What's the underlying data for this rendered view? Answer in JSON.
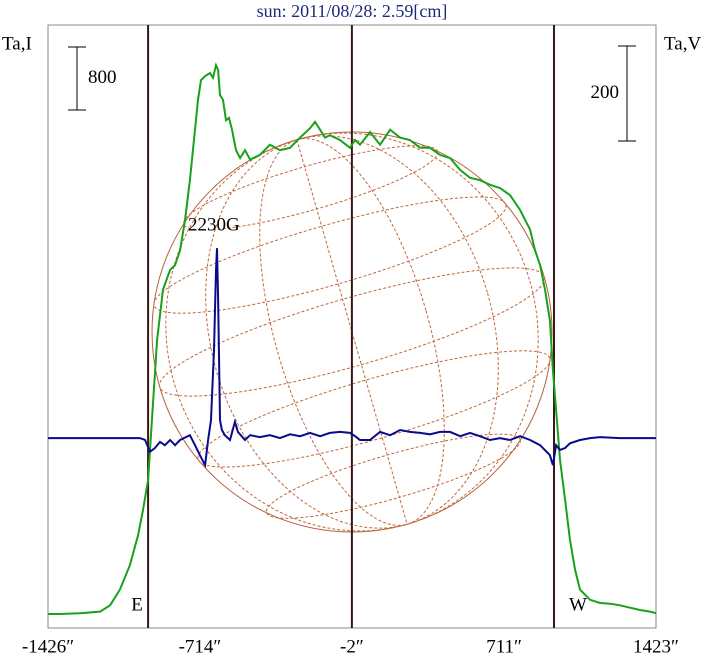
{
  "chart_data": {
    "type": "line",
    "title": "sun: 2011/08/28: 2.59[cm]",
    "ylabel": "Ta,I",
    "y2label": "Ta,V",
    "xlim": [
      -1426,
      1423
    ],
    "xticks": [
      {
        "value": -1426,
        "label": "-1426″"
      },
      {
        "value": -714,
        "label": "-714″"
      },
      {
        "value": -2,
        "label": "-2″"
      },
      {
        "value": 711,
        "label": "711″"
      },
      {
        "value": 1423,
        "label": "1423″"
      }
    ],
    "ylim": [
      -178,
      7480
    ],
    "y2lim": [
      -400,
      870
    ],
    "scale_bars": [
      {
        "value": 800
      },
      {
        "value": 200,
        "axis": "y2"
      }
    ],
    "markers": [
      {
        "x": -957,
        "label": "E"
      },
      {
        "x": -2
      },
      {
        "x": 945,
        "label": "W"
      }
    ],
    "annotations": [
      {
        "text": "2230G"
      }
    ],
    "series": [
      {
        "color": "#1aa01a",
        "x": [
          -1426,
          -1370,
          -1276,
          -1182,
          -1135,
          -1089,
          -1042,
          -1004,
          -981,
          -957,
          -939,
          -915,
          -887,
          -854,
          -831,
          -807,
          -784,
          -761,
          -737,
          -723,
          -709,
          -690,
          -667,
          -653,
          -639,
          -629,
          -620,
          -606,
          -592,
          -578,
          -564,
          -545,
          -526,
          -503,
          -479,
          -433,
          -386,
          -339,
          -292,
          -245,
          -198,
          -175,
          -151,
          -128,
          -105,
          -58,
          -11,
          13,
          36,
          83,
          130,
          177,
          224,
          270,
          317,
          364,
          411,
          458,
          505,
          552,
          598,
          645,
          692,
          739,
          786,
          833,
          856,
          880,
          903,
          926,
          940,
          955,
          973,
          997,
          1020,
          1044,
          1067,
          1114,
          1161,
          1208,
          1254,
          1301,
          1348,
          1395,
          1423
        ],
        "values": [
          0,
          0,
          10,
          30,
          110,
          310,
          620,
          1000,
          1320,
          1700,
          2460,
          3480,
          4120,
          4370,
          4430,
          4620,
          5000,
          5510,
          6150,
          6530,
          6780,
          6830,
          6870,
          6810,
          6970,
          6910,
          6590,
          6530,
          6270,
          6300,
          6150,
          5890,
          5790,
          5890,
          5770,
          5830,
          5960,
          5890,
          5920,
          6050,
          6170,
          6250,
          6150,
          6050,
          6080,
          6020,
          5920,
          6020,
          5960,
          6120,
          5960,
          6150,
          6050,
          6020,
          5920,
          5920,
          5830,
          5790,
          5640,
          5540,
          5510,
          5450,
          5410,
          5320,
          5130,
          4880,
          4620,
          4430,
          4120,
          3730,
          3100,
          2590,
          1960,
          1450,
          940,
          560,
          310,
          180,
          140,
          130,
          110,
          80,
          50,
          30,
          10
        ]
      },
      {
        "color": "#0a0a8c",
        "axis": "y2",
        "x": [
          -1426,
          -1182,
          -995,
          -971,
          -948,
          -925,
          -901,
          -878,
          -854,
          -831,
          -807,
          -761,
          -737,
          -714,
          -690,
          -676,
          -662,
          -648,
          -639,
          -634,
          -629,
          -620,
          -611,
          -597,
          -573,
          -550,
          -536,
          -503,
          -479,
          -433,
          -386,
          -339,
          -292,
          -245,
          -198,
          -151,
          -105,
          -58,
          -11,
          13,
          36,
          83,
          130,
          177,
          224,
          270,
          317,
          364,
          411,
          458,
          505,
          552,
          598,
          645,
          692,
          739,
          786,
          833,
          880,
          926,
          940,
          955,
          973,
          997,
          1020,
          1067,
          1114,
          1161,
          1254,
          1423
        ],
        "values": [
          0,
          0,
          0,
          -4,
          -29,
          -21,
          -8,
          -15,
          -4,
          -15,
          -4,
          6,
          -15,
          -36,
          -57,
          -4,
          38,
          185,
          354,
          400,
          295,
          38,
          17,
          6,
          -4,
          34,
          13,
          -4,
          6,
          2,
          6,
          0,
          8,
          4,
          11,
          4,
          11,
          13,
          11,
          4,
          -4,
          -4,
          13,
          6,
          17,
          13,
          11,
          8,
          13,
          13,
          4,
          11,
          4,
          -4,
          0,
          -4,
          4,
          -4,
          -15,
          -36,
          -57,
          -15,
          -25,
          -21,
          -11,
          -4,
          0,
          2,
          0,
          0
        ]
      }
    ]
  }
}
